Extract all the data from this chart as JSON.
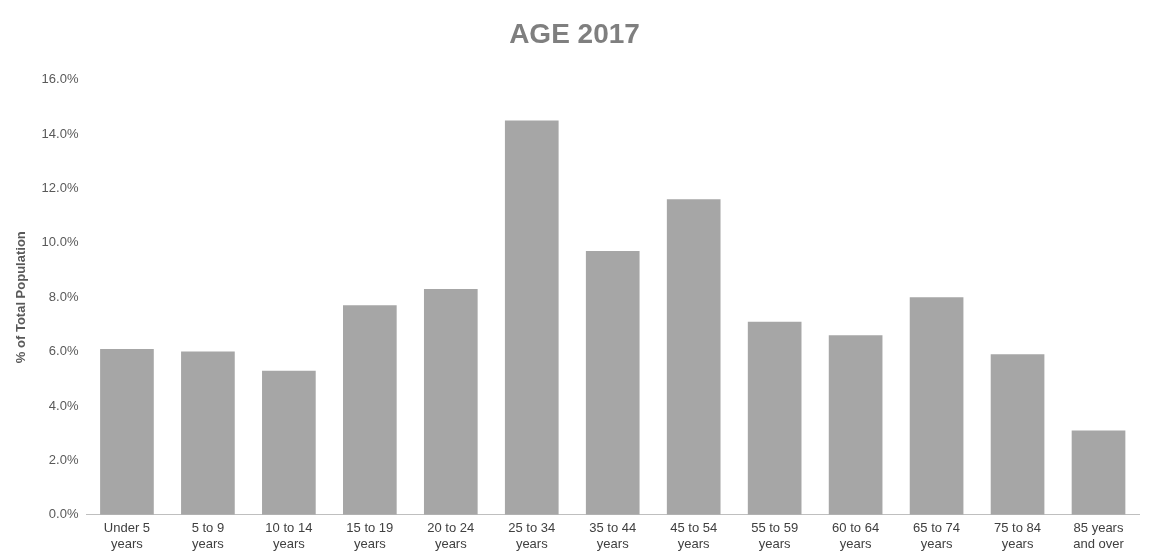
{
  "chart_data": {
    "type": "bar",
    "title": "AGE 2017",
    "ylabel": "% of Total Population",
    "categories": [
      "Under 5 years",
      "5 to 9 years",
      "10 to 14 years",
      "15 to 19 years",
      "20 to 24 years",
      "25 to 34 years",
      "35 to 44 years",
      "45 to 54 years",
      "55 to 59 years",
      "60 to 64 years",
      "65 to 74 years",
      "75 to 84 years",
      "85 years and over"
    ],
    "values": [
      6.1,
      6.0,
      5.3,
      7.7,
      8.3,
      14.5,
      9.7,
      11.6,
      7.1,
      6.6,
      8.0,
      5.9,
      3.1
    ],
    "color": "#a6a6a6",
    "ylim": [
      0,
      16
    ],
    "yticks": [
      {
        "value": 0,
        "label": "0.0%"
      },
      {
        "value": 2,
        "label": "2.0%"
      },
      {
        "value": 4,
        "label": "4.0%"
      },
      {
        "value": 6,
        "label": "6.0%"
      },
      {
        "value": 8,
        "label": "8.0%"
      },
      {
        "value": 10,
        "label": "10.0%"
      },
      {
        "value": 12,
        "label": "12.0%"
      },
      {
        "value": 14,
        "label": "14.0%"
      },
      {
        "value": 16,
        "label": "16.0%"
      }
    ],
    "grid": false,
    "legend": false
  }
}
